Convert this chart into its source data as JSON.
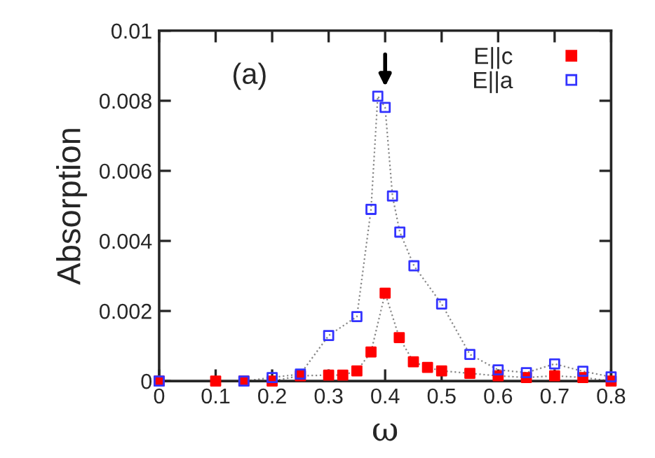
{
  "chart_data": {
    "type": "scatter",
    "xlabel": "ω",
    "ylabel": "Absorption",
    "xlim": [
      0,
      0.8
    ],
    "ylim": [
      0,
      0.01
    ],
    "xticks": [
      0,
      0.1,
      0.2,
      0.3,
      0.4,
      0.5,
      0.6,
      0.7,
      0.8
    ],
    "yticks": [
      0,
      0.002,
      0.004,
      0.006,
      0.008,
      0.01
    ],
    "grid": false,
    "legend": "top right",
    "marker": "square",
    "annotations": [
      "(a)"
    ],
    "series": [
      {
        "type": "line",
        "color": "#888888",
        "line_style": "dotted",
        "marker": "none",
        "x": [
          0,
          0.1,
          0.15,
          0.2,
          0.25,
          0.3,
          0.325,
          0.35,
          0.375,
          0.4,
          0.425,
          0.45,
          0.475,
          0.5,
          0.55,
          0.6,
          0.65,
          0.7,
          0.75,
          0.8
        ],
        "values": [
          0,
          0,
          0,
          0,
          0.00015,
          0.00017,
          0.00017,
          0.00029,
          0.00083,
          0.00251,
          0.00124,
          0.00055,
          0.00039,
          0.00029,
          0.00022,
          0.00015,
          0.0001,
          0.00015,
          0.0001,
          0
        ]
      },
      {
        "type": "line",
        "color": "#888888",
        "line_style": "dotted",
        "marker": "none",
        "x": [
          0,
          0.15,
          0.2,
          0.25,
          0.3,
          0.35,
          0.375,
          0.387,
          0.4,
          0.413,
          0.426,
          0.451,
          0.5,
          0.55,
          0.6,
          0.65,
          0.7,
          0.75,
          0.8
        ],
        "values": [
          0,
          0,
          0.0001,
          0.0002,
          0.0013,
          0.00184,
          0.0049,
          0.00813,
          0.00781,
          0.00528,
          0.00425,
          0.00329,
          0.0022,
          0.00076,
          0.00032,
          0.00024,
          0.00049,
          0.00028,
          0.00012
        ]
      },
      {
        "name": "E||c",
        "color": "#ff0000",
        "x": [
          0,
          0.1,
          0.15,
          0.2,
          0.25,
          0.3,
          0.325,
          0.35,
          0.375,
          0.4,
          0.425,
          0.45,
          0.475,
          0.5,
          0.55,
          0.6,
          0.65,
          0.7,
          0.75,
          0.8
        ],
        "values": [
          0,
          0,
          0,
          0,
          0.00015,
          0.00017,
          0.00017,
          0.00029,
          0.00083,
          0.00251,
          0.00124,
          0.00055,
          0.00039,
          0.00029,
          0.00022,
          0.00015,
          0.0001,
          0.00015,
          0.0001,
          0
        ]
      },
      {
        "name": "E||a",
        "color": "#3333ff",
        "x": [
          0,
          0.15,
          0.2,
          0.25,
          0.3,
          0.35,
          0.375,
          0.387,
          0.4,
          0.413,
          0.426,
          0.451,
          0.5,
          0.55,
          0.6,
          0.65,
          0.7,
          0.75,
          0.8
        ],
        "values": [
          0,
          0,
          0.0001,
          0.0002,
          0.0013,
          0.00184,
          0.0049,
          0.00813,
          0.00781,
          0.00528,
          0.00425,
          0.00329,
          0.0022,
          0.00076,
          0.00032,
          0.00024,
          0.00049,
          0.00028,
          0.00012
        ]
      }
    ]
  }
}
